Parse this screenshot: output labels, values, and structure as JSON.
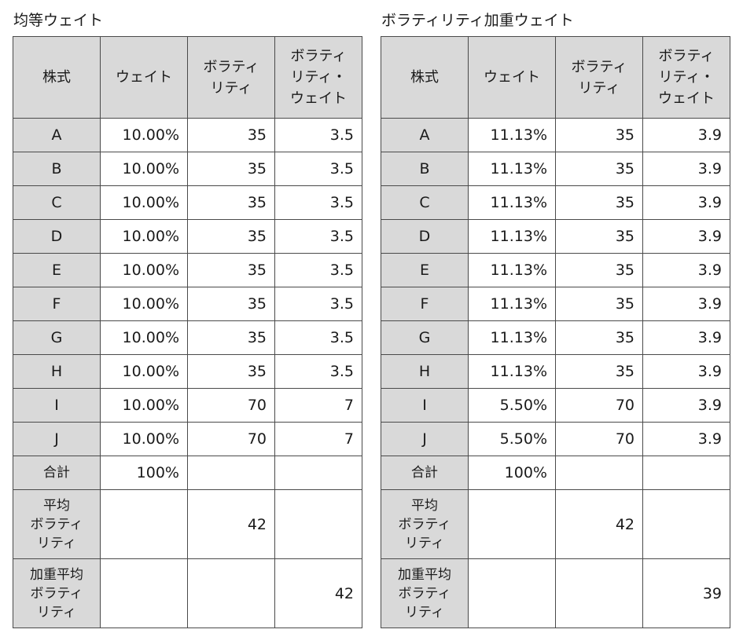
{
  "tables": [
    {
      "title": "均等ウェイト",
      "headers": [
        [
          "株式"
        ],
        [
          "ウェイト"
        ],
        [
          "ボラティ",
          "リティ"
        ],
        [
          "ボラティ",
          "リティ・",
          "ウェイト"
        ]
      ],
      "rows": [
        {
          "stock": "A",
          "weight": "10.00%",
          "volatility": "35",
          "vol_weight": "3.5"
        },
        {
          "stock": "B",
          "weight": "10.00%",
          "volatility": "35",
          "vol_weight": "3.5"
        },
        {
          "stock": "C",
          "weight": "10.00%",
          "volatility": "35",
          "vol_weight": "3.5"
        },
        {
          "stock": "D",
          "weight": "10.00%",
          "volatility": "35",
          "vol_weight": "3.5"
        },
        {
          "stock": "E",
          "weight": "10.00%",
          "volatility": "35",
          "vol_weight": "3.5"
        },
        {
          "stock": "F",
          "weight": "10.00%",
          "volatility": "35",
          "vol_weight": "3.5"
        },
        {
          "stock": "G",
          "weight": "10.00%",
          "volatility": "35",
          "vol_weight": "3.5"
        },
        {
          "stock": "H",
          "weight": "10.00%",
          "volatility": "35",
          "vol_weight": "3.5"
        },
        {
          "stock": "I",
          "weight": "10.00%",
          "volatility": "70",
          "vol_weight": "7"
        },
        {
          "stock": "J",
          "weight": "10.00%",
          "volatility": "70",
          "vol_weight": "7"
        }
      ],
      "total": {
        "label": "合計",
        "weight": "100%"
      },
      "avg": {
        "label_lines": [
          "平均",
          "ボラティ",
          "リティ"
        ],
        "value": "42"
      },
      "wavg": {
        "label_lines": [
          "加重平均",
          "ボラティ",
          "リティ"
        ],
        "value": "42"
      }
    },
    {
      "title": "ボラティリティ加重ウェイト",
      "headers": [
        [
          "株式"
        ],
        [
          "ウェイト"
        ],
        [
          "ボラティ",
          "リティ"
        ],
        [
          "ボラティ",
          "リティ・",
          "ウェイト"
        ]
      ],
      "rows": [
        {
          "stock": "A",
          "weight": "11.13%",
          "volatility": "35",
          "vol_weight": "3.9"
        },
        {
          "stock": "B",
          "weight": "11.13%",
          "volatility": "35",
          "vol_weight": "3.9"
        },
        {
          "stock": "C",
          "weight": "11.13%",
          "volatility": "35",
          "vol_weight": "3.9"
        },
        {
          "stock": "D",
          "weight": "11.13%",
          "volatility": "35",
          "vol_weight": "3.9"
        },
        {
          "stock": "E",
          "weight": "11.13%",
          "volatility": "35",
          "vol_weight": "3.9"
        },
        {
          "stock": "F",
          "weight": "11.13%",
          "volatility": "35",
          "vol_weight": "3.9"
        },
        {
          "stock": "G",
          "weight": "11.13%",
          "volatility": "35",
          "vol_weight": "3.9"
        },
        {
          "stock": "H",
          "weight": "11.13%",
          "volatility": "35",
          "vol_weight": "3.9"
        },
        {
          "stock": "I",
          "weight": "5.50%",
          "volatility": "70",
          "vol_weight": "3.9"
        },
        {
          "stock": "J",
          "weight": "5.50%",
          "volatility": "70",
          "vol_weight": "3.9"
        }
      ],
      "total": {
        "label": "合計",
        "weight": "100%"
      },
      "avg": {
        "label_lines": [
          "平均",
          "ボラティ",
          "リティ"
        ],
        "value": "42"
      },
      "wavg": {
        "label_lines": [
          "加重平均",
          "ボラティ",
          "リティ"
        ],
        "value": "39"
      }
    }
  ]
}
